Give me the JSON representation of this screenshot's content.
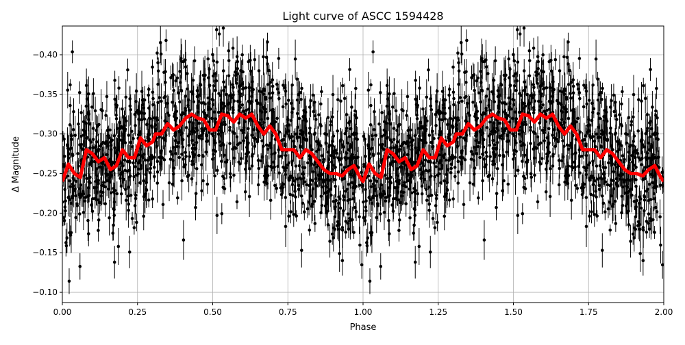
{
  "chart_data": {
    "type": "scatter",
    "title": "Light curve of ASCC 1594428",
    "xlabel": "Phase",
    "ylabel": "Δ Magnitude",
    "xlim": [
      0,
      2
    ],
    "ylim": [
      -0.4363,
      -0.0871
    ],
    "y_inverted": true,
    "grid": true,
    "x_ticks": [
      "0.00",
      "0.25",
      "0.50",
      "0.75",
      "1.00",
      "1.25",
      "1.50",
      "1.75",
      "2.00"
    ],
    "x_tick_values": [
      0,
      0.25,
      0.5,
      0.75,
      1,
      1.25,
      1.5,
      1.75,
      2
    ],
    "y_ticks": [
      "−0.40",
      "−0.35",
      "−0.30",
      "−0.25",
      "−0.20",
      "−0.15",
      "−0.10"
    ],
    "y_tick_values": [
      -0.4,
      -0.35,
      -0.3,
      -0.25,
      -0.2,
      -0.15,
      -0.1
    ],
    "scatter_color": "#000000",
    "binned_curve": {
      "color": "#ff0000",
      "phase": [
        0,
        0.02,
        0.04,
        0.06,
        0.08,
        0.1,
        0.12,
        0.14,
        0.16,
        0.18,
        0.2,
        0.22,
        0.24,
        0.26,
        0.28,
        0.3,
        0.31,
        0.33,
        0.35,
        0.37,
        0.39,
        0.41,
        0.43,
        0.45,
        0.47,
        0.49,
        0.51,
        0.53,
        0.55,
        0.57,
        0.59,
        0.61,
        0.63,
        0.65,
        0.67,
        0.69,
        0.71,
        0.73,
        0.75,
        0.77,
        0.79,
        0.81,
        0.83,
        0.85,
        0.87,
        0.89,
        0.91,
        0.93,
        0.95,
        0.97,
        0.99,
        1.0
      ],
      "magnitude": [
        -0.24,
        -0.262,
        -0.25,
        -0.245,
        -0.28,
        -0.275,
        -0.265,
        -0.27,
        -0.255,
        -0.26,
        -0.28,
        -0.27,
        -0.27,
        -0.295,
        -0.285,
        -0.29,
        -0.3,
        -0.3,
        -0.313,
        -0.305,
        -0.31,
        -0.32,
        -0.325,
        -0.32,
        -0.318,
        -0.305,
        -0.305,
        -0.325,
        -0.323,
        -0.315,
        -0.325,
        -0.32,
        -0.325,
        -0.31,
        -0.3,
        -0.31,
        -0.3,
        -0.28,
        -0.28,
        -0.28,
        -0.27,
        -0.28,
        -0.275,
        -0.265,
        -0.255,
        -0.25,
        -0.25,
        -0.247,
        -0.255,
        -0.26,
        -0.245,
        -0.24
      ],
      "repeats_every": 1
    }
  }
}
